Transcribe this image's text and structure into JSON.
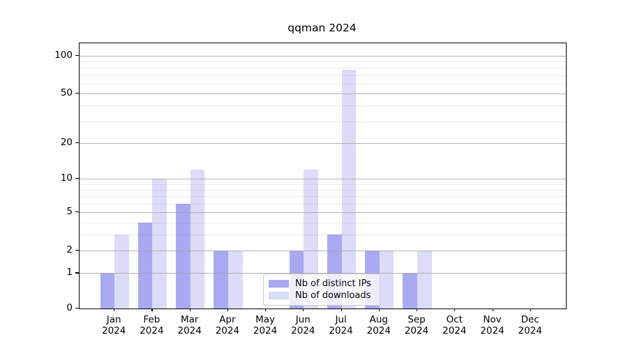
{
  "title": "qqman 2024",
  "chart_data": {
    "type": "bar",
    "title": "qqman 2024",
    "categories": [
      "Jan 2024",
      "Feb 2024",
      "Mar 2024",
      "Apr 2024",
      "May 2024",
      "Jun 2024",
      "Jul 2024",
      "Aug 2024",
      "Sep 2024",
      "Oct 2024",
      "Nov 2024",
      "Dec 2024"
    ],
    "months": [
      "Jan",
      "Feb",
      "Mar",
      "Apr",
      "May",
      "Jun",
      "Jul",
      "Aug",
      "Sep",
      "Oct",
      "Nov",
      "Dec"
    ],
    "year": "2024",
    "series": [
      {
        "name": "Nb of distinct IPs",
        "color": "#a9a9f2",
        "values": [
          1,
          4,
          6,
          2,
          0,
          2,
          3,
          2,
          1,
          0,
          0,
          0
        ]
      },
      {
        "name": "Nb of downloads",
        "color": "#dcdcf9",
        "values": [
          3,
          10,
          12,
          2,
          0,
          12,
          77,
          2,
          2,
          0,
          0,
          0
        ]
      }
    ],
    "xlabel": "",
    "ylabel": "",
    "yscale": "log1p",
    "ylim": [
      0,
      127
    ],
    "y_major_ticks": [
      0,
      1,
      2,
      5,
      10,
      20,
      50,
      100
    ],
    "y_minor_gridlines": [
      3,
      4,
      6,
      7,
      8,
      9,
      30,
      40,
      60,
      70,
      80,
      90
    ],
    "grid": "horizontal major+minor, drawn above bars",
    "legend_position": "lower center"
  },
  "legend": {
    "entries": [
      {
        "label": "Nb of distinct IPs",
        "color": "#a9a9f2"
      },
      {
        "label": "Nb of downloads",
        "color": "#dcdcf9"
      }
    ]
  },
  "colors": {
    "background": "#ffffff",
    "axis": "#000000",
    "grid_major": "#a5a5a5",
    "grid_minor": "#ebebeb",
    "text": "#000000",
    "legend_border": "#cccccc"
  }
}
